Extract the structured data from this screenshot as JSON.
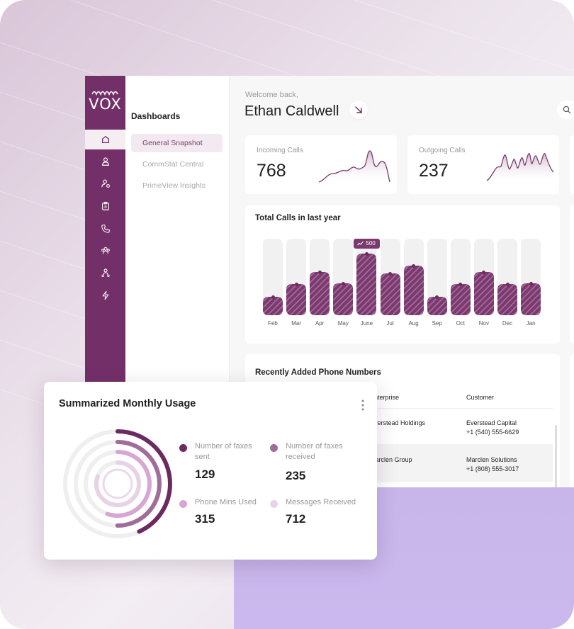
{
  "app": {
    "logo_text": "VOX"
  },
  "sidebar": {
    "icons": [
      "home-icon",
      "user-icon",
      "user-settings-icon",
      "clipboard-icon",
      "phone-icon",
      "team-icon",
      "agent-icon",
      "bolt-icon"
    ],
    "active_index": 0
  },
  "subpanel": {
    "title": "Dashboards",
    "items": [
      {
        "label": "General Snapshot",
        "active": true
      },
      {
        "label": "CommStat Central",
        "active": false
      },
      {
        "label": "PrimeView Insights",
        "active": false
      }
    ]
  },
  "header": {
    "welcome": "Welcome back,",
    "user_name": "Ethan Caldwell"
  },
  "stats": {
    "incoming": {
      "label": "Incoming Calls",
      "value": "768"
    },
    "outgoing": {
      "label": "Outgoing Calls",
      "value": "237"
    }
  },
  "calls_chart": {
    "title": "Total Calls in last year",
    "badge": "500",
    "chart_data": {
      "type": "bar",
      "categories": [
        "Feb",
        "Mar",
        "Apr",
        "May",
        "June",
        "Jul",
        "Aug",
        "Sep",
        "Oct",
        "Nov",
        "Dec",
        "Jan"
      ],
      "values": [
        150,
        250,
        350,
        260,
        500,
        340,
        400,
        150,
        250,
        350,
        250,
        260
      ],
      "ymax": 620,
      "highlight_index": 4
    }
  },
  "phone_numbers": {
    "title": "Recently Added Phone Numbers",
    "columns": {
      "enterprise": "Enterprise",
      "customer": "Customer"
    },
    "rows": [
      {
        "enterprise": "Everstead Holdings",
        "customer": "Everstead Capital",
        "phone": "+1 (540) 555-6629"
      },
      {
        "enterprise": "Marclen Group",
        "customer": "Marclen Solutions",
        "phone": "+1 (808) 555-3017"
      }
    ]
  },
  "usage": {
    "title": "Summarized Monthly Usage",
    "items": [
      {
        "label_1": "Number of faxes",
        "label_2": "sent",
        "value": "129",
        "color": "#6b2a60"
      },
      {
        "label_1": "Number of faxes",
        "label_2": "received",
        "value": "235",
        "color": "#a06c9a"
      },
      {
        "label_1": "Phone Mins Used",
        "label_2": "",
        "value": "315",
        "color": "#d7a6d3"
      },
      {
        "label_1": "Messages Received",
        "label_2": "",
        "value": "712",
        "color": "#e7d3e6"
      }
    ]
  },
  "colors": {
    "brand": "#733068",
    "accent": "#7a3a6d",
    "lavender": "#c8b6ea"
  }
}
